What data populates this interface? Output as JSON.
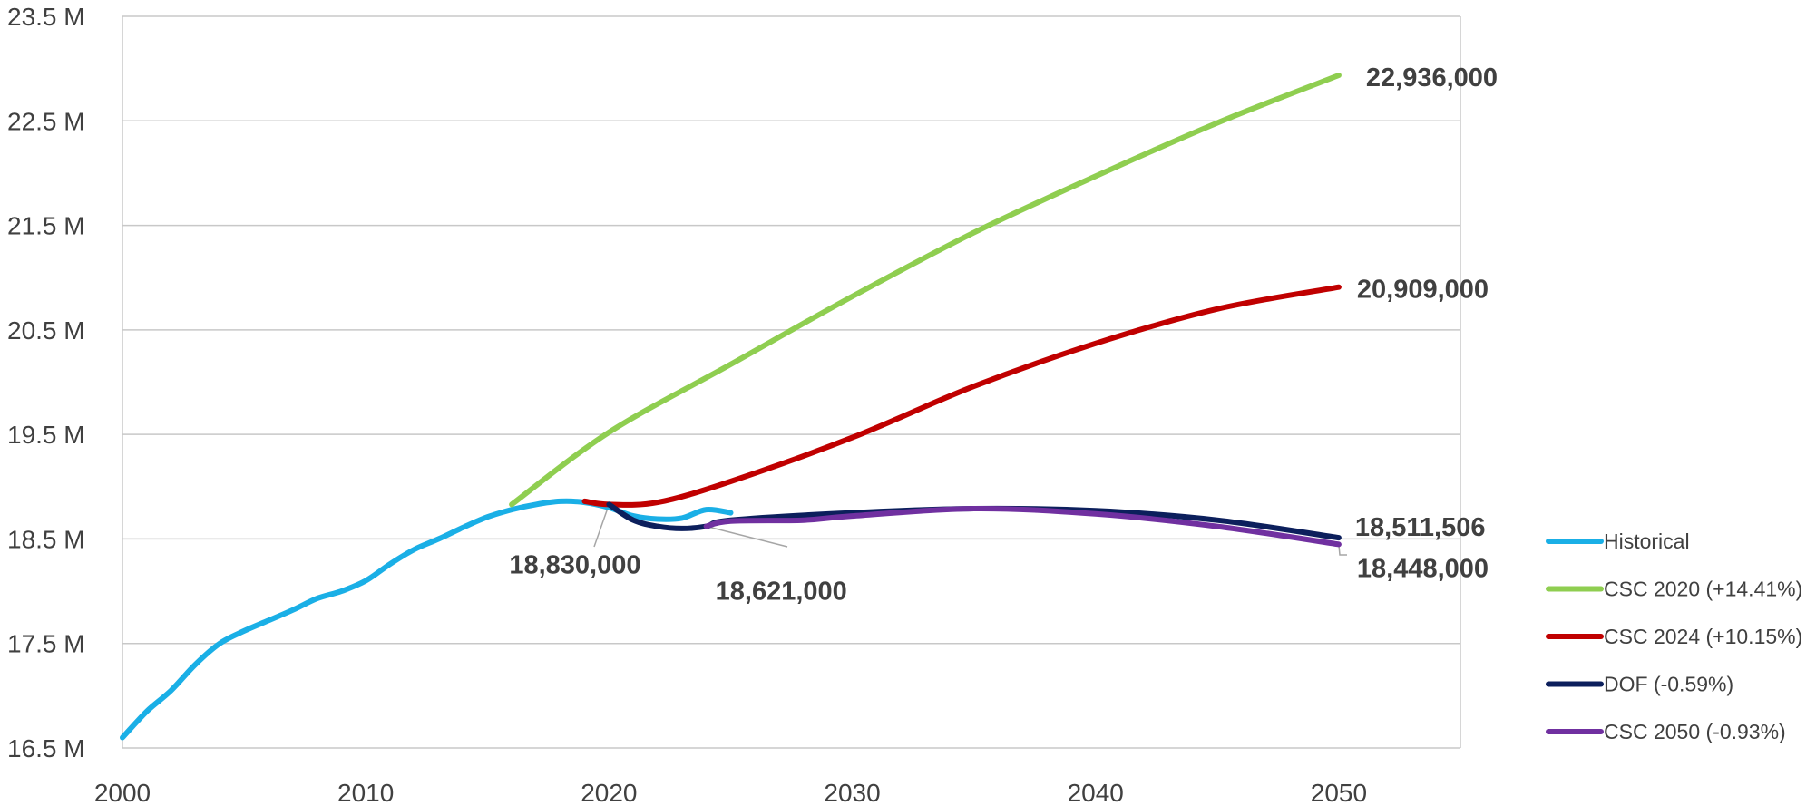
{
  "chart_data": {
    "type": "line",
    "title": "",
    "xlabel": "",
    "ylabel": "",
    "xlim": [
      2000,
      2055
    ],
    "ylim": [
      16.5,
      23.5
    ],
    "x_ticks": [
      2000,
      2010,
      2020,
      2030,
      2040,
      2050
    ],
    "y_ticks": [
      16.5,
      17.5,
      18.5,
      19.5,
      20.5,
      21.5,
      22.5,
      23.5
    ],
    "y_tick_labels": [
      "16.5 M",
      "17.5 M",
      "18.5 M",
      "19.5 M",
      "20.5 M",
      "21.5 M",
      "22.5 M",
      "23.5 M"
    ],
    "grid": true,
    "legend_position": "right",
    "series": [
      {
        "name": "Historical",
        "color": "#1aafe6",
        "points": [
          [
            2000,
            16.6
          ],
          [
            2001,
            16.85
          ],
          [
            2002,
            17.05
          ],
          [
            2003,
            17.3
          ],
          [
            2004,
            17.5
          ],
          [
            2005,
            17.62
          ],
          [
            2006,
            17.72
          ],
          [
            2007,
            17.82
          ],
          [
            2008,
            17.93
          ],
          [
            2009,
            18.0
          ],
          [
            2010,
            18.1
          ],
          [
            2011,
            18.26
          ],
          [
            2012,
            18.4
          ],
          [
            2013,
            18.5
          ],
          [
            2014,
            18.61
          ],
          [
            2015,
            18.71
          ],
          [
            2016,
            18.78
          ],
          [
            2017,
            18.83
          ],
          [
            2018,
            18.86
          ],
          [
            2019,
            18.85
          ],
          [
            2020,
            18.8
          ],
          [
            2021,
            18.72
          ],
          [
            2022,
            18.69
          ],
          [
            2023,
            18.7
          ],
          [
            2024,
            18.78
          ],
          [
            2025,
            18.75
          ]
        ]
      },
      {
        "name": "CSC 2020 (+14.41%)",
        "color": "#8fce50",
        "points": [
          [
            2016,
            18.83
          ],
          [
            2020,
            19.52
          ],
          [
            2025,
            20.17
          ],
          [
            2030,
            20.82
          ],
          [
            2035,
            21.43
          ],
          [
            2040,
            21.97
          ],
          [
            2045,
            22.48
          ],
          [
            2050,
            22.936
          ]
        ]
      },
      {
        "name": "CSC 2024 (+10.15%)",
        "color": "#c00000",
        "points": [
          [
            2019,
            18.86
          ],
          [
            2020,
            18.83
          ],
          [
            2022,
            18.85
          ],
          [
            2025,
            19.05
          ],
          [
            2030,
            19.47
          ],
          [
            2035,
            19.96
          ],
          [
            2040,
            20.37
          ],
          [
            2045,
            20.7
          ],
          [
            2050,
            20.909
          ]
        ]
      },
      {
        "name": "DOF (-0.59%)",
        "color": "#0c1f5c",
        "points": [
          [
            2020,
            18.83
          ],
          [
            2021,
            18.68
          ],
          [
            2022,
            18.62
          ],
          [
            2023,
            18.6
          ],
          [
            2024,
            18.62
          ],
          [
            2025,
            18.68
          ],
          [
            2030,
            18.75
          ],
          [
            2035,
            18.79
          ],
          [
            2040,
            18.77
          ],
          [
            2045,
            18.68
          ],
          [
            2050,
            18.511506
          ]
        ]
      },
      {
        "name": "CSC 2050 (-0.93%)",
        "color": "#7030a0",
        "points": [
          [
            2024,
            18.621
          ],
          [
            2025,
            18.67
          ],
          [
            2028,
            18.68
          ],
          [
            2030,
            18.72
          ],
          [
            2035,
            18.79
          ],
          [
            2040,
            18.74
          ],
          [
            2045,
            18.62
          ],
          [
            2050,
            18.448
          ]
        ]
      }
    ],
    "annotations": [
      {
        "text": "22,936,000",
        "x": 2050,
        "y": 22.936
      },
      {
        "text": "20,909,000",
        "x": 2050,
        "y": 20.909
      },
      {
        "text": "18,511,506",
        "x": 2050,
        "y": 18.511506
      },
      {
        "text": "18,448,000",
        "x": 2050,
        "y": 18.448
      },
      {
        "text": "18,830,000",
        "x": 2020,
        "y": 18.83
      },
      {
        "text": "18,621,000",
        "x": 2024,
        "y": 18.621
      }
    ]
  }
}
